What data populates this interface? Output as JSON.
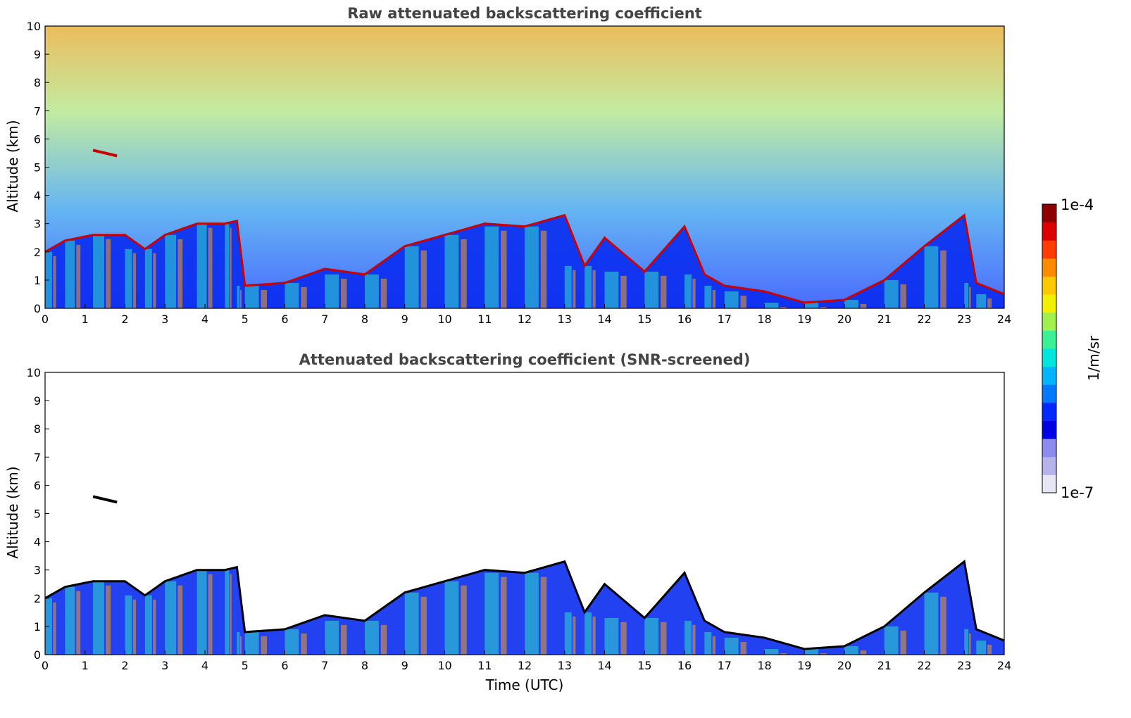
{
  "chart_data": [
    {
      "type": "heatmap",
      "title": "Raw attenuated backscattering coefficient",
      "xlabel": "",
      "ylabel": "Altitude (km)",
      "xlim": [
        0,
        24
      ],
      "ylim": [
        0,
        10
      ],
      "x_ticks": [
        "0",
        "1",
        "2",
        "3",
        "4",
        "5",
        "6",
        "7",
        "8",
        "9",
        "10",
        "11",
        "12",
        "13",
        "14",
        "15",
        "16",
        "17",
        "18",
        "19",
        "20",
        "21",
        "22",
        "23",
        "24"
      ],
      "y_ticks": [
        "0",
        "1",
        "2",
        "3",
        "4",
        "5",
        "6",
        "7",
        "8",
        "9",
        "10"
      ],
      "cloud_top_km": [
        [
          0,
          2.0
        ],
        [
          0.5,
          2.4
        ],
        [
          1.2,
          2.6
        ],
        [
          2,
          2.6
        ],
        [
          2.5,
          2.1
        ],
        [
          3,
          2.6
        ],
        [
          3.8,
          3.0
        ],
        [
          4.5,
          3.0
        ],
        [
          4.8,
          3.1
        ],
        [
          5,
          0.8
        ],
        [
          6,
          0.9
        ],
        [
          7,
          1.4
        ],
        [
          8,
          1.2
        ],
        [
          9,
          2.2
        ],
        [
          10,
          2.6
        ],
        [
          11,
          3.0
        ],
        [
          12,
          2.9
        ],
        [
          13,
          3.3
        ],
        [
          13.5,
          1.5
        ],
        [
          14,
          2.5
        ],
        [
          15,
          1.3
        ],
        [
          16,
          2.9
        ],
        [
          16.5,
          1.2
        ],
        [
          17,
          0.8
        ],
        [
          18,
          0.6
        ],
        [
          19,
          0.2
        ],
        [
          20,
          0.3
        ],
        [
          21,
          1.0
        ],
        [
          22,
          2.2
        ],
        [
          23,
          3.3
        ],
        [
          23.3,
          0.9
        ],
        [
          24,
          0.5
        ]
      ],
      "elevated_layer": {
        "x_start": 1.2,
        "x_end": 1.8,
        "altitude_km": 5.5
      }
    },
    {
      "type": "heatmap",
      "title": "Attenuated backscattering coefficient (SNR-screened)",
      "xlabel": "Time (UTC)",
      "ylabel": "Altitude (km)",
      "xlim": [
        0,
        24
      ],
      "ylim": [
        0,
        10
      ],
      "x_ticks": [
        "0",
        "1",
        "2",
        "3",
        "4",
        "5",
        "6",
        "7",
        "8",
        "9",
        "10",
        "11",
        "12",
        "13",
        "14",
        "15",
        "16",
        "17",
        "18",
        "19",
        "20",
        "21",
        "22",
        "23",
        "24"
      ],
      "y_ticks": [
        "0",
        "1",
        "2",
        "3",
        "4",
        "5",
        "6",
        "7",
        "8",
        "9",
        "10"
      ],
      "cloud_top_km": [
        [
          0,
          2.0
        ],
        [
          0.5,
          2.4
        ],
        [
          1.2,
          2.6
        ],
        [
          2,
          2.6
        ],
        [
          2.5,
          2.1
        ],
        [
          3,
          2.6
        ],
        [
          3.8,
          3.0
        ],
        [
          4.5,
          3.0
        ],
        [
          4.8,
          3.1
        ],
        [
          5,
          0.8
        ],
        [
          6,
          0.9
        ],
        [
          7,
          1.4
        ],
        [
          8,
          1.2
        ],
        [
          9,
          2.2
        ],
        [
          10,
          2.6
        ],
        [
          11,
          3.0
        ],
        [
          12,
          2.9
        ],
        [
          13,
          3.3
        ],
        [
          13.5,
          1.5
        ],
        [
          14,
          2.5
        ],
        [
          15,
          1.3
        ],
        [
          16,
          2.9
        ],
        [
          16.5,
          1.2
        ],
        [
          17,
          0.8
        ],
        [
          18,
          0.6
        ],
        [
          19,
          0.2
        ],
        [
          20,
          0.3
        ],
        [
          21,
          1.0
        ],
        [
          22,
          2.2
        ],
        [
          23,
          3.3
        ],
        [
          23.3,
          0.9
        ],
        [
          24,
          0.5
        ]
      ],
      "elevated_layer": {
        "x_start": 1.2,
        "x_end": 1.8,
        "altitude_km": 5.5
      }
    }
  ],
  "colorbar": {
    "max_label": "1e-4",
    "min_label": "1e-7",
    "unit_label": "1/m/sr",
    "colors": [
      "#e6e6f5",
      "#b4b4eb",
      "#8c8cf0",
      "#0000e6",
      "#0028ff",
      "#0078ff",
      "#00b4ff",
      "#00e6dc",
      "#3cf096",
      "#a0f050",
      "#f0f000",
      "#ffc800",
      "#ff8c00",
      "#ff3c00",
      "#dc0000",
      "#8c0000"
    ]
  },
  "colors": {
    "background": "#ffffff",
    "axis": "#000000",
    "title": "#444444",
    "noise_low": "#2850ff",
    "noise_high": "#e8b040",
    "boundary_layer": "#0a2cf0",
    "cloud_top": "#c80000"
  }
}
